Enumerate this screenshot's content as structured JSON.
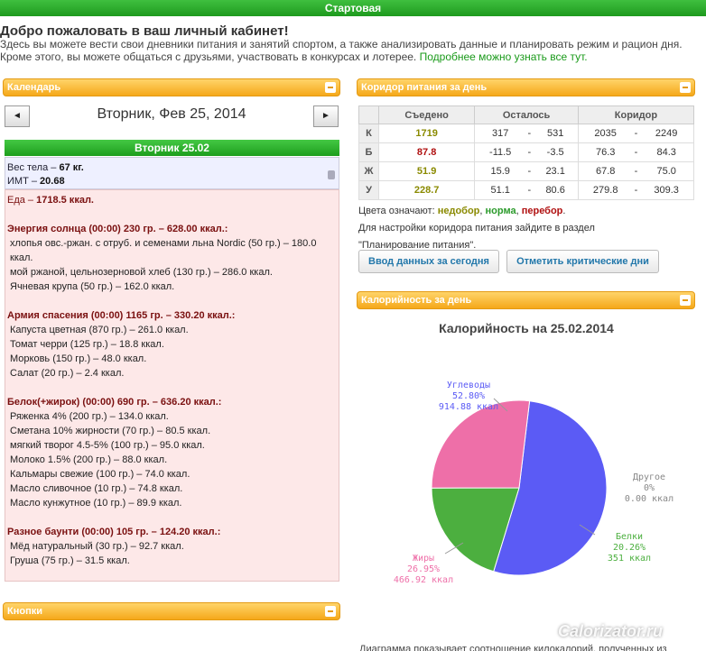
{
  "topbar": "Стартовая",
  "heading": "Добро пожаловать в ваш личный кабинет!",
  "intro1": "Здесь вы можете вести свои дневники питания и занятий спортом, а также анализировать данные и планировать режим и рацион дня.",
  "intro2": "Кроме этого, вы можете общаться с друзьями, участвовать в конкурсах и лотерее. ",
  "intro_link": "Подробнее можно узнать все тут.",
  "calendar": {
    "title": "Календарь",
    "prev": "◄",
    "next": "►",
    "date": "Вторник, Фев 25, 2014",
    "day": "Вторник 25.02"
  },
  "weight": {
    "label": "Вес тела –",
    "value": "67 кг.",
    "bmi_label": "ИМТ –",
    "bmi": "20.68"
  },
  "food": {
    "total_label": "Еда –",
    "total": "1718.5 ккал.",
    "meals": [
      {
        "title": "Энергия солнца (00:00) 230 гр. – 628.00 ккал.:",
        "items": [
          "хлопья овс.-ржан. с отруб. и семенами льна Nordic (50 гр.) – 180.0 ккал.",
          "мой ржаной, цельнозерновой хлеб (130 гр.) – 286.0 ккал.",
          "Ячневая крупа (50 гр.) – 162.0 ккал."
        ]
      },
      {
        "title": "Армия спасения (00:00) 1165 гр. – 330.20 ккал.:",
        "items": [
          "Капуста цветная (870 гр.) – 261.0 ккал.",
          "Томат черри (125 гр.) – 18.8 ккал.",
          "Морковь (150 гр.) – 48.0 ккал.",
          "Салат (20 гр.) – 2.4 ккал."
        ]
      },
      {
        "title": "Белок(+жирок) (00:00) 690 гр. – 636.20 ккал.:",
        "items": [
          "Ряженка 4% (200 гр.) – 134.0 ккал.",
          "Сметана 10% жирности (70 гр.) – 80.5 ккал.",
          "мягкий творог 4.5-5% (100 гр.) – 95.0 ккал.",
          "Молоко 1.5% (200 гр.) – 88.0 ккал.",
          "Кальмары свежие (100 гр.) – 74.0 ккал.",
          "Масло сливочное (10 гр.) – 74.8 ккал.",
          "Масло кунжутное (10 гр.) – 89.9 ккал."
        ]
      },
      {
        "title": "Разное баунти (00:00) 105 гр. – 124.20 ккал.:",
        "items": [
          "Мёд натуральный (30 гр.) – 92.7 ккал.",
          "Груша (75 гр.) – 31.5 ккал."
        ]
      }
    ]
  },
  "buttons_panel": "Кнопки",
  "corridor": {
    "title": "Коридор питания за день",
    "headers": [
      "Съедено",
      "Осталось",
      "Коридор"
    ],
    "rows": [
      {
        "l": "К",
        "eaten": "1719",
        "c": "#8a8a00",
        "r1": "317",
        "r2": "531",
        "k1": "2035",
        "k2": "2249"
      },
      {
        "l": "Б",
        "eaten": "87.8",
        "c": "#b01010",
        "r1": "-11.5",
        "r2": "-3.5",
        "k1": "76.3",
        "k2": "84.3"
      },
      {
        "l": "Ж",
        "eaten": "51.9",
        "c": "#8a8a00",
        "r1": "15.9",
        "r2": "23.1",
        "k1": "67.8",
        "k2": "75.0"
      },
      {
        "l": "У",
        "eaten": "228.7",
        "c": "#8a8a00",
        "r1": "51.1",
        "r2": "80.6",
        "k1": "279.8",
        "k2": "309.3"
      }
    ],
    "dash": "-",
    "legend_prefix": "Цвета означают:",
    "leg1": "недобор",
    "leg2": "норма",
    "leg3": "перебор",
    "sep": ", ",
    "dot": ".",
    "hint1": "Для настройки коридора питания зайдите в раздел",
    "hint2": "\"Планирование питания\".",
    "btn1": "Ввод данных за сегодня",
    "btn2": "Отметить критические дни"
  },
  "calories": {
    "title": "Калорийность за день"
  },
  "chart_data": {
    "type": "pie",
    "title": "Калорийность на 25.02.2014",
    "slices": [
      {
        "name": "Углеводы",
        "pct": "52.80%",
        "value": "914.88 ккал",
        "v": 914.88,
        "color": "#5b5bf5"
      },
      {
        "name": "Белки",
        "pct": "20.26%",
        "value": "351 ккал",
        "v": 351,
        "color": "#4caf3f"
      },
      {
        "name": "Жиры",
        "pct": "26.95%",
        "value": "466.92 ккал",
        "v": 466.92,
        "color": "#ee6fa8"
      },
      {
        "name": "Другое",
        "pct": "0%",
        "value": "0.00 ккал",
        "v": 0,
        "color": "#aaaaaa"
      }
    ]
  },
  "watermark": "Calorizator.ru",
  "bottom_text": "Диаграмма показывает соотношение килокалорий, полученных из"
}
